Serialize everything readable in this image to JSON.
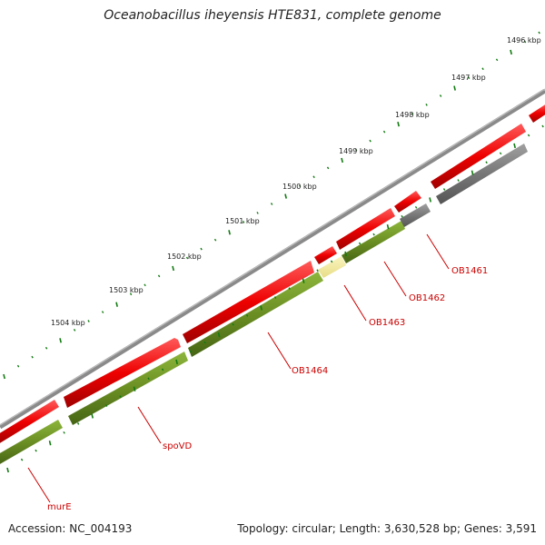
{
  "title": "Oceanobacillus iheyensis HTE831, complete genome",
  "ruler": [
    "1496 kbp",
    "1497 kbp",
    "1498 kbp",
    "1499 kbp",
    "1500 kbp",
    "1501 kbp",
    "1502 kbp",
    "1503 kbp",
    "1504 kbp"
  ],
  "genes": [
    "OB1461",
    "OB1462",
    "OB1463",
    "OB1464",
    "spoVD",
    "murE"
  ],
  "footer": {
    "accession": "Accession: NC_004193",
    "stats": "Topology: circular; Length: 3,630,528 bp; Genes: 3,591"
  },
  "colors": {
    "backbone": "#8a8a8a",
    "forward_gene": "#ee0000",
    "reverse_gene": "#6b8e23",
    "pseudo_gene": "#777777",
    "highlight": "#f3eb9a",
    "ticks": "#117a11",
    "label": "#cc0000"
  }
}
